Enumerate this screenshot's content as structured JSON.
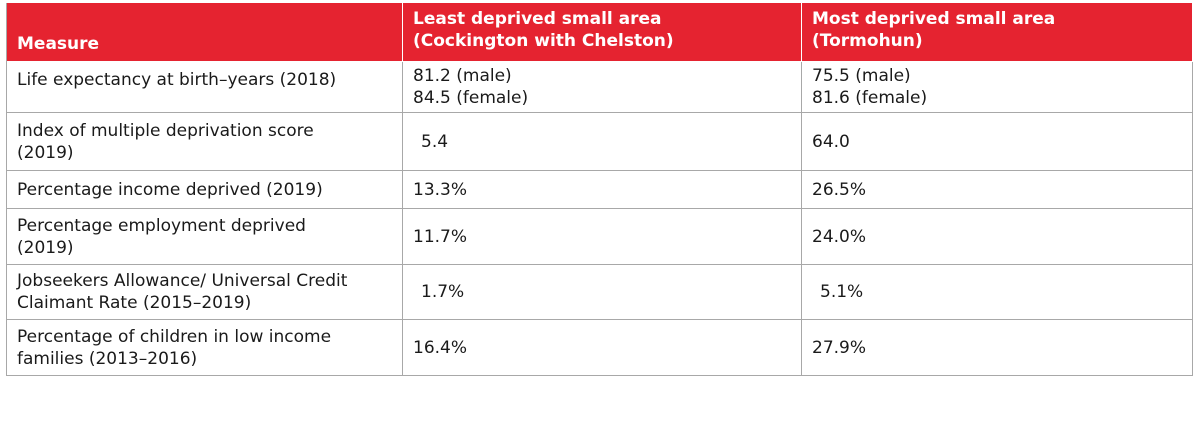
{
  "table": {
    "headers": {
      "measure": "Measure",
      "least_line1": "Least deprived small area",
      "least_line2": "(Cockington with Chelston)",
      "most_line1": "Most deprived small area",
      "most_line2": "(Tormohun)"
    },
    "rows": [
      {
        "measure_line1": "Life expectancy at birth–years (2018)",
        "least_line1": "81.2 (male)",
        "least_line2": "84.5 (female)",
        "most_line1": "75.5 (male)",
        "most_line2": "81.6 (female)"
      },
      {
        "measure_line1": "Index of multiple deprivation score",
        "measure_line2": "(2019)",
        "least": "5.4",
        "most": "64.0"
      },
      {
        "measure_line1": "Percentage income deprived (2019)",
        "least": "13.3%",
        "most": "26.5%"
      },
      {
        "measure_line1": "Percentage employment deprived",
        "measure_line2": "(2019)",
        "least": "11.7%",
        "most": "24.0%"
      },
      {
        "measure_line1": "Jobseekers Allowance/ Universal Credit",
        "measure_line2": "Claimant Rate (2015–2019)",
        "least": "1.7%",
        "most": "5.1%"
      },
      {
        "measure_line1": "Percentage of children in low income",
        "measure_line2": "families (2013–2016)",
        "least": "16.4%",
        "most": "27.9%"
      }
    ]
  },
  "colors": {
    "header_background": "#e52330",
    "header_text": "#ffffff",
    "grid_line": "#a8a8a8"
  }
}
